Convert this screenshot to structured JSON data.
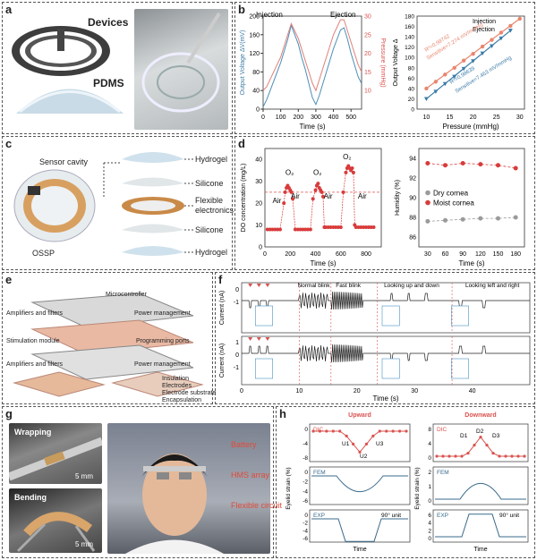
{
  "panels": {
    "a": {
      "label": "a",
      "devices": "Devices",
      "pdms": "PDMS"
    },
    "b": {
      "label": "b"
    },
    "c": {
      "label": "c",
      "sensor_cavity": "Sensor cavity",
      "hydrogel_top": "Hydrogel",
      "silicone_top": "Silicone",
      "flexible": "Flexible",
      "electronics": "electronics",
      "silicone_bottom": "Silicone",
      "hydrogel_bottom": "Hydrogel",
      "ossp": "OSSP"
    },
    "d": {
      "label": "d"
    },
    "e": {
      "label": "e",
      "microcontroller": "Microcontroller",
      "amplifiers_top": "Amplifiers and filters",
      "power_top": "Power management",
      "stimulation": "Stimulation module",
      "programming": "Programming ports",
      "amplifiers_bottom": "Amplifiers and filters",
      "power_bottom": "Power management",
      "insulation": "Insulation",
      "electrodes": "Electrodes",
      "electrode_substrate": "Electrode substrate",
      "encapsulation": "Encapsulation"
    },
    "f": {
      "label": "f"
    },
    "g": {
      "label": "g",
      "wrapping": "Wrapping",
      "bending": "Bending",
      "scale_top": "5 mm",
      "scale_bottom": "5 mm",
      "battery": "Battery",
      "hms_array": "HMS array",
      "flexible_circuit": "Flexible circuit"
    },
    "h": {
      "label": "h"
    }
  },
  "chart_data": [
    {
      "id": "b-left",
      "type": "line",
      "annotations": [
        "Injection",
        "Ejection"
      ],
      "xlabel": "Time (s)",
      "ylabel": "Output Voltage ΔV(mV)",
      "ylabel_right": "Pressure (mmHg)",
      "xlim": [
        0,
        560
      ],
      "ylim": [
        0,
        200
      ],
      "ylim_right": [
        5,
        30
      ],
      "xticks": [
        0,
        100,
        200,
        300,
        400,
        500
      ],
      "yticks": [
        0,
        40,
        80,
        120,
        160,
        200
      ],
      "yticks_right": [
        10,
        15,
        20,
        25,
        30
      ],
      "series": [
        {
          "name": "Output Voltage",
          "color": "#4b8fb5",
          "x": [
            0,
            20,
            40,
            60,
            80,
            100,
            120,
            140,
            160,
            180,
            200,
            220,
            240,
            260,
            280,
            300,
            320,
            340,
            360,
            380,
            400,
            420,
            440,
            460,
            480,
            500,
            520,
            540,
            560
          ],
          "values": [
            5,
            20,
            40,
            60,
            80,
            100,
            125,
            150,
            180,
            160,
            140,
            110,
            85,
            55,
            25,
            10,
            30,
            55,
            80,
            105,
            130,
            150,
            170,
            175,
            150,
            120,
            95,
            70,
            55
          ]
        },
        {
          "name": "Pressure",
          "color": "#e0807a",
          "x": [
            0,
            20,
            40,
            60,
            80,
            100,
            120,
            140,
            160,
            180,
            200,
            220,
            240,
            260,
            280,
            300,
            320,
            340,
            360,
            380,
            400,
            420,
            440,
            460,
            480,
            500,
            520,
            540,
            560
          ],
          "values": [
            10,
            11,
            13,
            15,
            17,
            19,
            22,
            25,
            28,
            26,
            24,
            21,
            18,
            15,
            12,
            10,
            13,
            16,
            19,
            22,
            25,
            27,
            29,
            29,
            26,
            23,
            20,
            17,
            15
          ]
        }
      ]
    },
    {
      "id": "b-right",
      "type": "scatter",
      "xlabel": "Pressure (mmHg)",
      "ylabel": "Output Voltage Δ",
      "xlim": [
        8,
        31
      ],
      "ylim": [
        0,
        180
      ],
      "xticks": [
        10,
        15,
        20,
        25,
        30
      ],
      "yticks": [
        0,
        20,
        40,
        60,
        80,
        100,
        120,
        140,
        160,
        180
      ],
      "annotations": [
        "R²=0.99742",
        "Sensitive=7.274 mV/mmHg",
        "R²=0.99639",
        "Sensitive=7.463 mV/mmHg"
      ],
      "series": [
        {
          "name": "Injection",
          "color": "#3a7ba8",
          "x": [
            10,
            12,
            14,
            16,
            18,
            20,
            22,
            24,
            26,
            28
          ],
          "values": [
            20,
            34,
            49,
            63,
            78,
            93,
            108,
            122,
            137,
            152
          ]
        },
        {
          "name": "Ejection",
          "color": "#e8866f",
          "x": [
            10,
            12,
            14,
            16,
            18,
            20,
            22,
            24,
            26,
            28,
            30
          ],
          "values": [
            40,
            53,
            67,
            80,
            94,
            107,
            121,
            134,
            148,
            161,
            175
          ]
        }
      ]
    },
    {
      "id": "d-left",
      "type": "scatter",
      "xlabel": "Time (s)",
      "ylabel": "DO concentration (mg/L)",
      "xlim": [
        0,
        920
      ],
      "ylim": [
        0,
        45
      ],
      "xticks": [
        0,
        200,
        400,
        600,
        800
      ],
      "yticks": [
        0,
        10,
        20,
        30,
        40
      ],
      "annotations": [
        "O₂",
        "O₂",
        "O₂",
        "Air",
        "Air",
        "Air",
        "Air"
      ],
      "series": [
        {
          "name": "DO",
          "color": "#d83b3b",
          "x": [
            20,
            40,
            60,
            80,
            100,
            120,
            150,
            160,
            170,
            180,
            190,
            200,
            210,
            220,
            240,
            260,
            280,
            300,
            320,
            340,
            360,
            380,
            400,
            410,
            420,
            430,
            440,
            450,
            460,
            470,
            480,
            500,
            520,
            540,
            560,
            580,
            600,
            620,
            640,
            650,
            660,
            670,
            680,
            690,
            700,
            710,
            720,
            740,
            760,
            780,
            800,
            820,
            840,
            860
          ],
          "values": [
            8,
            8,
            8,
            8,
            8,
            8,
            20,
            25,
            27,
            28,
            27,
            26,
            25,
            22,
            8,
            8,
            8,
            8,
            8,
            8,
            8,
            22,
            26,
            28,
            29,
            27,
            26,
            25,
            23,
            9,
            9,
            9,
            9,
            9,
            9,
            9,
            9,
            25,
            34,
            36,
            37,
            36,
            35,
            36,
            34,
            10,
            9,
            9,
            9,
            9,
            9,
            9,
            9,
            9
          ]
        }
      ]
    },
    {
      "id": "d-right",
      "type": "line",
      "xlabel": "Time (s)",
      "ylabel": "Humidity (%)",
      "xlim": [
        15,
        195
      ],
      "ylim": [
        85,
        95
      ],
      "xticks": [
        30,
        60,
        90,
        120,
        150,
        180
      ],
      "yticks": [
        86,
        88,
        90,
        92,
        94
      ],
      "series": [
        {
          "name": "Dry cornea",
          "color": "#9a9a9a",
          "x": [
            30,
            60,
            90,
            120,
            150,
            180
          ],
          "values": [
            87.6,
            87.7,
            87.8,
            87.9,
            87.9,
            88.0
          ]
        },
        {
          "name": "Moist cornea",
          "color": "#d83b3b",
          "x": [
            30,
            60,
            90,
            120,
            150,
            180
          ],
          "values": [
            93.5,
            93.3,
            93.5,
            93.4,
            93.3,
            93.0
          ]
        }
      ]
    },
    {
      "id": "f",
      "type": "line",
      "xlabel": "Time (s)",
      "ylabel": "Current (nA)",
      "xlim": [
        0,
        50
      ],
      "xticks": [
        0,
        10,
        20,
        30,
        40
      ],
      "segments": [
        "Normal blink",
        "Fast blink",
        "Looking up and down",
        "Looking left and right"
      ],
      "panels": [
        {
          "yticks": [
            0,
            -1
          ]
        },
        {
          "yticks": [
            1,
            0,
            -1
          ]
        }
      ]
    },
    {
      "id": "h-upward",
      "type": "line",
      "title": "Upward",
      "xlabel": "Time",
      "labels": [
        "DIC",
        "FEM",
        "EXP",
        "90° unit",
        "U1",
        "U2",
        "U3"
      ],
      "yticks_dic": [
        0,
        -4,
        -8
      ],
      "yticks_fem": [
        0,
        -2,
        -4,
        -6
      ],
      "yticks_exp": [
        0,
        -2,
        -4,
        -6
      ],
      "ylabel": "Eyelid strain (%)"
    },
    {
      "id": "h-downward",
      "type": "line",
      "title": "Downward",
      "xlabel": "Time",
      "labels": [
        "DIC",
        "FEM",
        "EXP",
        "90° unit",
        "D1",
        "D2",
        "D3"
      ],
      "yticks_dic": [
        8,
        4,
        0
      ],
      "yticks_fem": [
        2,
        1,
        0
      ],
      "yticks_exp": [
        6,
        4,
        2,
        0
      ],
      "ylabel": "Eyelid strain (%)"
    }
  ]
}
